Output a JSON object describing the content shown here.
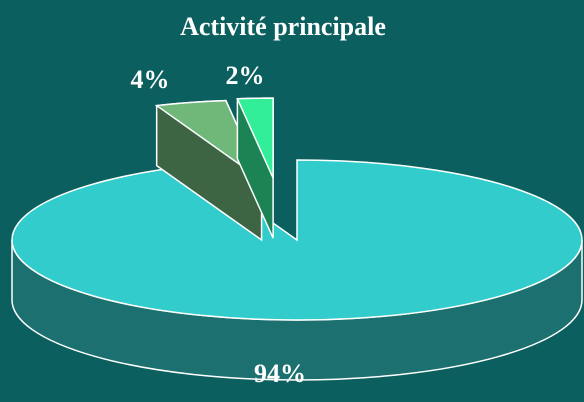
{
  "chart_data": {
    "type": "pie",
    "title": "Activité principale",
    "values": [
      94,
      4,
      2
    ],
    "value_labels": [
      "94%",
      "4%",
      "2%"
    ],
    "colors": [
      "#33cccc",
      "#6fb87a",
      "#33ee99"
    ]
  }
}
